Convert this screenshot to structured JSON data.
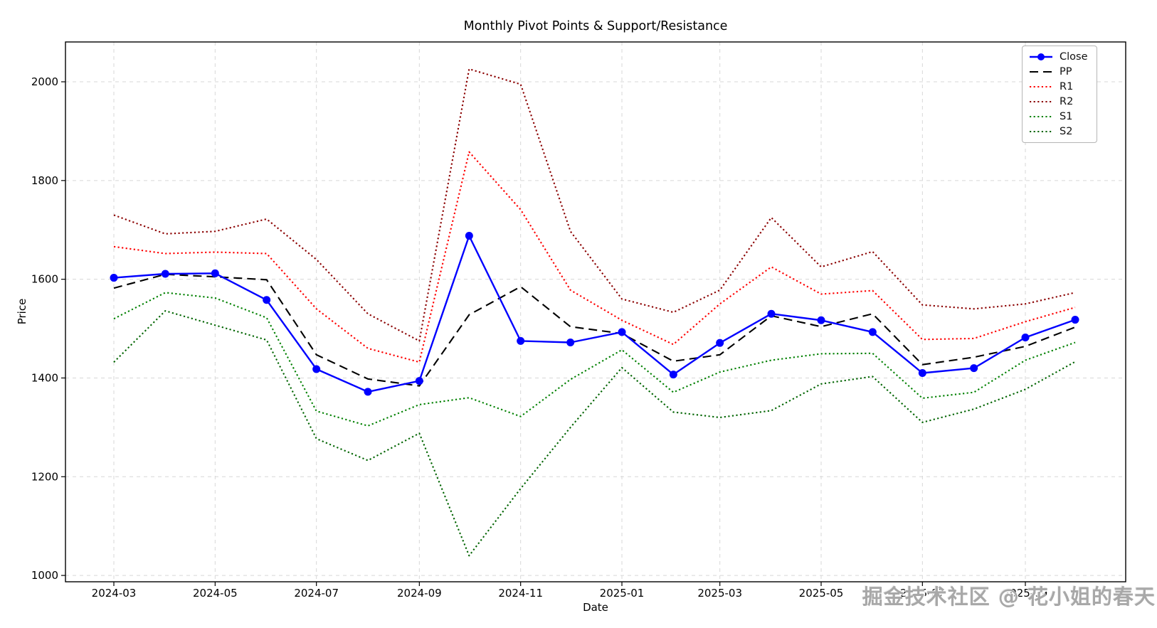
{
  "title": "Monthly Pivot Points & Support/Resistance",
  "watermark": "掘金技术社区 @ 花小姐的春天",
  "chart_data": {
    "type": "line",
    "title": "Monthly Pivot Points & Support/Resistance",
    "xlabel": "Date",
    "ylabel": "Price",
    "grid": true,
    "legend_position": "upper right",
    "ylim": [
      987,
      2081
    ],
    "y_ticks": [
      1000,
      1200,
      1400,
      1600,
      1800,
      2000
    ],
    "x_ticks": [
      {
        "day": 0,
        "label": "2024-03"
      },
      {
        "day": 61,
        "label": "2024-05"
      },
      {
        "day": 122,
        "label": "2024-07"
      },
      {
        "day": 184,
        "label": "2024-09"
      },
      {
        "day": 245,
        "label": "2024-11"
      },
      {
        "day": 306,
        "label": "2025-01"
      },
      {
        "day": 365,
        "label": "2025-03"
      },
      {
        "day": 426,
        "label": "2025-05"
      },
      {
        "day": 487,
        "label": "2025-07"
      },
      {
        "day": 549,
        "label": "2025-09"
      }
    ],
    "categories": [
      "2024-03",
      "2024-04",
      "2024-05",
      "2024-06",
      "2024-07",
      "2024-08",
      "2024-09",
      "2024-10",
      "2024-11",
      "2024-12",
      "2025-01",
      "2025-02",
      "2025-03",
      "2025-04",
      "2025-05",
      "2025-06",
      "2025-07",
      "2025-08",
      "2025-09",
      "2025-10"
    ],
    "day_offsets": [
      0,
      31,
      61,
      92,
      122,
      153,
      184,
      214,
      245,
      275,
      306,
      337,
      365,
      396,
      426,
      457,
      487,
      518,
      549,
      579
    ],
    "series": [
      {
        "name": "Close",
        "color": "#0000ff",
        "style": "solid",
        "marker": "circle",
        "values": [
          1603,
          1611,
          1612,
          1558,
          1418,
          1372,
          1394,
          1688,
          1475,
          1472,
          1493,
          1407,
          1471,
          1530,
          1517,
          1493,
          1410,
          1420,
          1482,
          1518
        ]
      },
      {
        "name": "PP",
        "color": "#000000",
        "style": "dashed",
        "marker": "none",
        "values": [
          1582,
          1610,
          1605,
          1599,
          1447,
          1398,
          1384,
          1528,
          1585,
          1504,
          1490,
          1434,
          1447,
          1526,
          1504,
          1530,
          1427,
          1442,
          1464,
          1503
        ]
      },
      {
        "name": "R1",
        "color": "#ff0000",
        "style": "dotted",
        "marker": "none",
        "values": [
          1666,
          1652,
          1655,
          1652,
          1540,
          1460,
          1432,
          1858,
          1741,
          1578,
          1517,
          1468,
          1550,
          1625,
          1570,
          1577,
          1478,
          1480,
          1514,
          1543
        ]
      },
      {
        "name": "R2",
        "color": "#8b0000",
        "style": "dotted",
        "marker": "none",
        "values": [
          1730,
          1692,
          1697,
          1722,
          1640,
          1530,
          1475,
          2026,
          1995,
          1697,
          1560,
          1533,
          1578,
          1725,
          1625,
          1656,
          1548,
          1540,
          1550,
          1573
        ]
      },
      {
        "name": "S1",
        "color": "#008000",
        "style": "dotted",
        "marker": "none",
        "values": [
          1520,
          1573,
          1562,
          1522,
          1333,
          1303,
          1346,
          1360,
          1322,
          1397,
          1457,
          1371,
          1412,
          1436,
          1449,
          1450,
          1359,
          1371,
          1436,
          1472
        ]
      },
      {
        "name": "S2",
        "color": "#006400",
        "style": "dotted",
        "marker": "none",
        "values": [
          1432,
          1536,
          1507,
          1477,
          1277,
          1233,
          1288,
          1040,
          1176,
          1300,
          1421,
          1331,
          1320,
          1334,
          1388,
          1403,
          1310,
          1337,
          1377,
          1433
        ]
      }
    ],
    "colors": {
      "grid": "#d7d7d7",
      "spine": "#000000",
      "background": "#ffffff"
    }
  }
}
